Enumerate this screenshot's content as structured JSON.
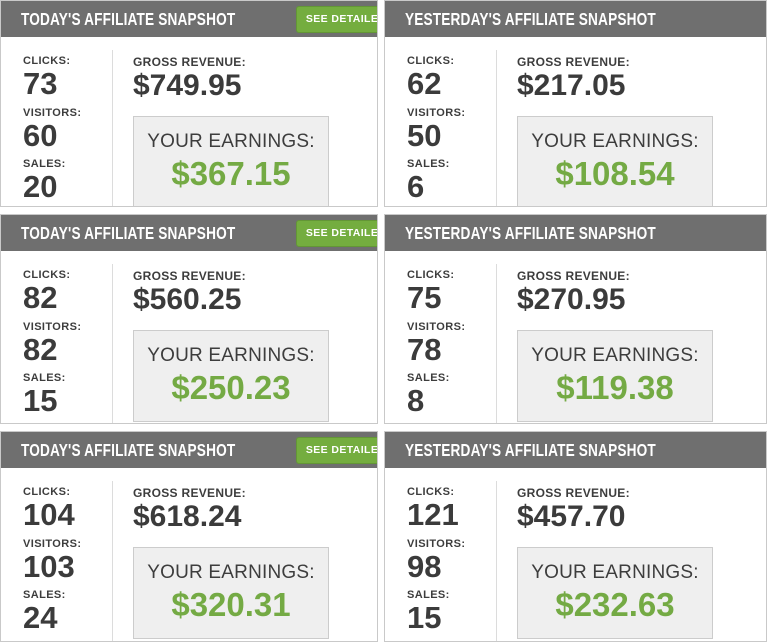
{
  "colors": {
    "header_gray": "#6f6f6f",
    "button_green": "#74ad3f",
    "earnings_green": "#74aa44",
    "earnings_box_bg": "#efefef",
    "text_dark": "#3b3b3b"
  },
  "labels": {
    "clicks": "CLICKS:",
    "visitors": "VISITORS:",
    "sales": "SALES:",
    "gross_revenue": "GROSS REVENUE:",
    "your_earnings": "YOUR EARNINGS:",
    "see_detailed_stats": "SEE DETAILED STATS"
  },
  "panels": [
    {
      "title": "TODAY'S AFFILIATE SNAPSHOT",
      "clicks": "73",
      "visitors": "60",
      "sales": "20",
      "gross_revenue": "$749.95",
      "earnings": "$367.15"
    },
    {
      "title": "YESTERDAY'S AFFILIATE SNAPSHOT",
      "clicks": "62",
      "visitors": "50",
      "sales": "6",
      "gross_revenue": "$217.05",
      "earnings": "$108.54"
    },
    {
      "title": "TODAY'S AFFILIATE SNAPSHOT",
      "clicks": "82",
      "visitors": "82",
      "sales": "15",
      "gross_revenue": "$560.25",
      "earnings": "$250.23"
    },
    {
      "title": "YESTERDAY'S AFFILIATE SNAPSHOT",
      "clicks": "75",
      "visitors": "78",
      "sales": "8",
      "gross_revenue": "$270.95",
      "earnings": "$119.38"
    },
    {
      "title": "TODAY'S AFFILIATE SNAPSHOT",
      "clicks": "104",
      "visitors": "103",
      "sales": "24",
      "gross_revenue": "$618.24",
      "earnings": "$320.31"
    },
    {
      "title": "YESTERDAY'S AFFILIATE SNAPSHOT",
      "clicks": "121",
      "visitors": "98",
      "sales": "15",
      "gross_revenue": "$457.70",
      "earnings": "$232.63"
    }
  ]
}
